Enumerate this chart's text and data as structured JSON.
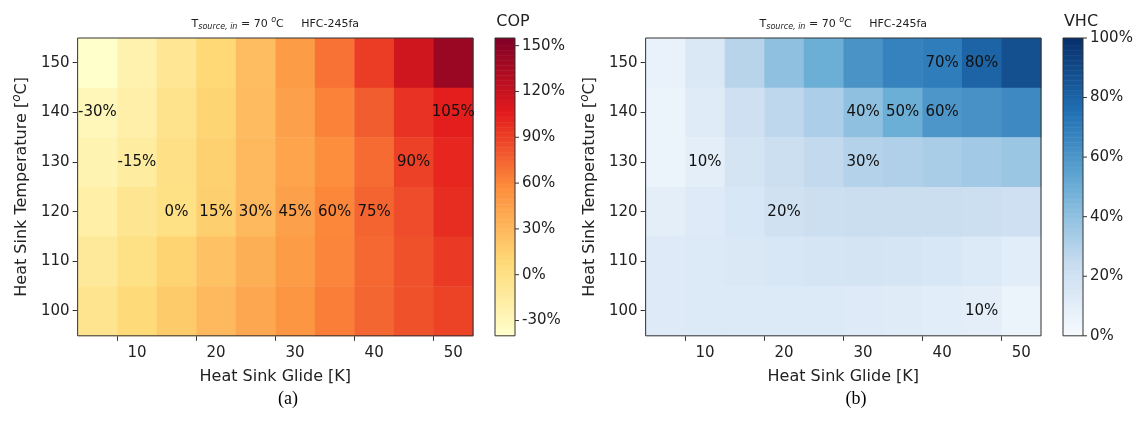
{
  "chart_data": [
    {
      "type": "heatmap",
      "title": "T$_{source, in}$ = 70 $^{o}$C     HFC-245fa",
      "xlabel": "Heat Sink Glide [K]",
      "ylabel": "Heat Sink Temperature [$^{o}$C]",
      "clabel": "COP",
      "categories": [
        null,
        "10",
        null,
        "20",
        null,
        "30",
        null,
        "40",
        null,
        "50"
      ],
      "y_categories": [
        "150",
        "140",
        "130",
        "120",
        "110",
        "100"
      ],
      "cells": [
        [
          -40,
          -23,
          -8,
          9,
          27,
          48,
          69,
          92,
          116,
          142
        ],
        [
          -30,
          -20,
          -4,
          11,
          28,
          45,
          62,
          78,
          96,
          105
        ],
        [
          -25,
          -15,
          -1,
          14,
          29,
          43,
          57,
          72,
          90,
          101
        ],
        [
          -19,
          -7,
          0,
          15,
          30,
          45,
          60,
          75,
          85,
          98
        ],
        [
          -12,
          0,
          12,
          24,
          36,
          48,
          61,
          73,
          83,
          93
        ],
        [
          -5,
          7,
          18,
          29,
          41,
          52,
          64,
          74,
          83,
          89
        ]
      ],
      "cell_labels": [
        [
          null,
          null,
          null,
          null,
          null,
          null,
          null,
          null,
          null,
          null
        ],
        [
          "-30%",
          null,
          null,
          null,
          null,
          null,
          null,
          null,
          null,
          "105%"
        ],
        [
          null,
          "-15%",
          null,
          null,
          null,
          null,
          null,
          null,
          "90%",
          null
        ],
        [
          null,
          null,
          "0%",
          "15%",
          "30%",
          "45%",
          "60%",
          "75%",
          null,
          null
        ],
        [
          null,
          null,
          null,
          null,
          null,
          null,
          null,
          null,
          null,
          null
        ],
        [
          null,
          null,
          null,
          null,
          null,
          null,
          null,
          null,
          null,
          null
        ]
      ],
      "clim": [
        -40,
        155
      ],
      "cticks": [
        {
          "value": -30,
          "label": "-30%"
        },
        {
          "value": 0,
          "label": "0%"
        },
        {
          "value": 30,
          "label": "30%"
        },
        {
          "value": 60,
          "label": "60%"
        },
        {
          "value": 90,
          "label": "90%"
        },
        {
          "value": 120,
          "label": "120%"
        },
        {
          "value": 150,
          "label": "150%"
        }
      ],
      "annotations": [
        "(a)"
      ]
    },
    {
      "type": "heatmap",
      "title": "T$_{source, in}$ = 70 $^{o}$C     HFC-245fa",
      "xlabel": "Heat Sink Glide [K]",
      "ylabel": "Heat Sink Temperature [$^{o}$C]",
      "clabel": "VHC",
      "categories": [
        null,
        "10",
        null,
        "20",
        null,
        "30",
        null,
        "40",
        null,
        "50"
      ],
      "y_categories": [
        "150",
        "140",
        "130",
        "120",
        "110",
        "100"
      ],
      "cells": [
        [
          7,
          15,
          29,
          40,
          50,
          61,
          68,
          70,
          80,
          88
        ],
        [
          6,
          12,
          21,
          27,
          32,
          40,
          50,
          60,
          62,
          65
        ],
        [
          6,
          10,
          18,
          22,
          26,
          30,
          31,
          33,
          35,
          37
        ],
        [
          10,
          13,
          16,
          20,
          22,
          23,
          23,
          23,
          22,
          21
        ],
        [
          13,
          14,
          15,
          16,
          17,
          18,
          17,
          16,
          14,
          11
        ],
        [
          13,
          14,
          14,
          14,
          14,
          13,
          12,
          11,
          10,
          6
        ]
      ],
      "cell_labels": [
        [
          null,
          null,
          null,
          null,
          null,
          null,
          null,
          "70%",
          "80%",
          null
        ],
        [
          null,
          null,
          null,
          null,
          null,
          "40%",
          "50%",
          "60%",
          null,
          null
        ],
        [
          null,
          "10%",
          null,
          null,
          null,
          "30%",
          null,
          null,
          null,
          null
        ],
        [
          null,
          null,
          null,
          "20%",
          null,
          null,
          null,
          null,
          null,
          null
        ],
        [
          null,
          null,
          null,
          null,
          null,
          null,
          null,
          null,
          null,
          null
        ],
        [
          null,
          null,
          null,
          null,
          null,
          null,
          null,
          null,
          "10%",
          null
        ]
      ],
      "clim": [
        0,
        100
      ],
      "cticks": [
        {
          "value": 0,
          "label": "0%"
        },
        {
          "value": 20,
          "label": "20%"
        },
        {
          "value": 40,
          "label": "40%"
        },
        {
          "value": 60,
          "label": "60%"
        },
        {
          "value": 80,
          "label": "80%"
        },
        {
          "value": 100,
          "label": "100%"
        }
      ],
      "annotations": [
        "(b)"
      ]
    }
  ]
}
